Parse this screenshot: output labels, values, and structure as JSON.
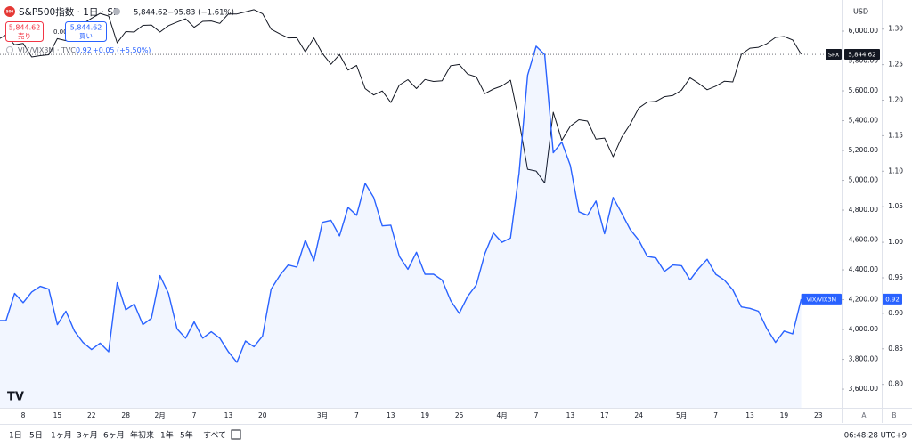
{
  "header": {
    "icon": "500",
    "symbol_title": "S&P500指数 · 1日 · SP",
    "price": "5,844.62",
    "change": "−95.83 (−1.61%)",
    "sell_price": "5,844.62",
    "sell_label": "売り",
    "spread": "0.00",
    "buy_price": "5,844.62",
    "buy_label": "買い"
  },
  "compare_legend": {
    "symbol": "VIX/VIX3M · TVC",
    "value": "0.92",
    "change": "+0.05 (+5.50%)"
  },
  "axis_currency": "USD",
  "price_scale_buttons": [
    "A",
    "B"
  ],
  "chart_data": {
    "type": "line",
    "categories": [
      null,
      null,
      null,
      null,
      "8",
      null,
      null,
      null,
      "15",
      null,
      null,
      null,
      "22",
      null,
      null,
      null,
      "28",
      null,
      null,
      null,
      "2月",
      null,
      null,
      null,
      "7",
      null,
      null,
      null,
      "13",
      null,
      null,
      null,
      "20",
      null,
      null,
      null,
      null,
      null,
      null,
      "3月",
      null,
      null,
      null,
      "7",
      null,
      null,
      null,
      "13",
      null,
      null,
      null,
      "19",
      null,
      null,
      null,
      "25",
      null,
      null,
      null,
      null,
      "4月",
      null,
      null,
      null,
      "7",
      null,
      null,
      null,
      "13",
      null,
      null,
      null,
      "17",
      null,
      null,
      null,
      "24",
      null,
      null,
      null,
      null,
      "5月",
      null,
      null,
      null,
      "7",
      null,
      null,
      null,
      "13",
      null,
      null,
      null,
      "19",
      null,
      null,
      null,
      "23"
    ],
    "series": [
      {
        "name": "SPX",
        "color": "#131722",
        "last_label": "5,844.62",
        "values": [
          5868,
          5942,
          5975,
          5909,
          5918,
          5827,
          5836,
          5842,
          5950,
          5937,
          5997,
          6049,
          6086,
          6119,
          6101,
          5922,
          5997,
          5994,
          6039,
          6041,
          5994,
          6037,
          6061,
          6083,
          6026,
          6066,
          6068,
          6052,
          6115,
          6115,
          6129,
          6144,
          6117,
          6013,
          5983,
          5955,
          5956,
          5861,
          5955,
          5850,
          5778,
          5843,
          5739,
          5770,
          5615,
          5572,
          5599,
          5522,
          5639,
          5675,
          5615,
          5676,
          5663,
          5667,
          5768,
          5777,
          5712,
          5693,
          5581,
          5612,
          5633,
          5671,
          5397,
          5074,
          5062,
          4983,
          5457,
          5268,
          5363,
          5406,
          5397,
          5276,
          5283,
          5158,
          5288,
          5376,
          5485,
          5525,
          5529,
          5561,
          5569,
          5604,
          5687,
          5650,
          5607,
          5631,
          5664,
          5660,
          5844,
          5886,
          5892,
          5917,
          5958,
          5964,
          5941,
          5844.62,
          null,
          null
        ]
      },
      {
        "name": "VIX/VIX3M",
        "color": "#2962ff",
        "axis": "y2",
        "area": true,
        "last_label": "0.92",
        "values": [
          0.89,
          0.89,
          0.89,
          0.928,
          0.915,
          0.93,
          0.938,
          0.934,
          0.884,
          0.903,
          0.875,
          0.859,
          0.849,
          0.858,
          0.846,
          0.943,
          0.905,
          0.913,
          0.884,
          0.893,
          0.953,
          0.928,
          0.878,
          0.865,
          0.888,
          0.865,
          0.874,
          0.865,
          0.846,
          0.831,
          0.861,
          0.853,
          0.868,
          0.934,
          0.953,
          0.968,
          0.965,
          1.003,
          0.974,
          1.028,
          1.031,
          1.009,
          1.049,
          1.038,
          1.083,
          1.063,
          1.023,
          1.024,
          0.98,
          0.962,
          0.986,
          0.955,
          0.955,
          0.947,
          0.918,
          0.9,
          0.924,
          0.94,
          0.984,
          1.013,
          1.0,
          1.006,
          1.097,
          1.235,
          1.276,
          1.264,
          1.126,
          1.141,
          1.108,
          1.043,
          1.038,
          1.058,
          1.012,
          1.063,
          1.041,
          1.018,
          1.003,
          0.98,
          0.978,
          0.959,
          0.968,
          0.967,
          0.947,
          0.963,
          0.976,
          0.955,
          0.947,
          0.933,
          0.909,
          0.907,
          0.903,
          0.878,
          0.859,
          0.875,
          0.871,
          0.92,
          null,
          null
        ]
      }
    ],
    "ylim": [
      3475,
      6209
    ],
    "yticks": [
      {
        "value": 3600,
        "label": "3,600.00"
      },
      {
        "value": 3800,
        "label": "3,800.00"
      },
      {
        "value": 4000,
        "label": "4,000.00"
      },
      {
        "value": 4200,
        "label": "4,200.00"
      },
      {
        "value": 4400,
        "label": "4,400.00"
      },
      {
        "value": 4600,
        "label": "4,600.00"
      },
      {
        "value": 4800,
        "label": "4,800.00"
      },
      {
        "value": 5000,
        "label": "5,000.00"
      },
      {
        "value": 5200,
        "label": "5,200.00"
      },
      {
        "value": 5400,
        "label": "5,400.00"
      },
      {
        "value": 5600,
        "label": "5,600.00"
      },
      {
        "value": 5800,
        "label": "5,800.00"
      },
      {
        "value": 6000,
        "label": "6,000.00"
      }
    ],
    "y2lim": [
      0.767,
      1.341
    ],
    "y2ticks": [
      {
        "value": 0.8,
        "label": "0.80"
      },
      0.85,
      {
        "value": 0.9,
        "label": "0.90"
      },
      0.95,
      {
        "value": 1,
        "label": "1.00"
      },
      1.05,
      {
        "value": 1.1,
        "label": "1.10"
      },
      1.15,
      {
        "value": 1.2,
        "label": "1.20"
      },
      1.25,
      {
        "value": 1.3,
        "label": "1.30"
      }
    ],
    "grid": false,
    "last_price_line": true
  },
  "toolbar": {
    "ranges": [
      "1日",
      "5日",
      "1ヶ月",
      "3ヶ月",
      "6ヶ月",
      "年初来",
      "1年",
      "5年",
      "すべて"
    ],
    "time": "06:48:28 UTC+9"
  }
}
